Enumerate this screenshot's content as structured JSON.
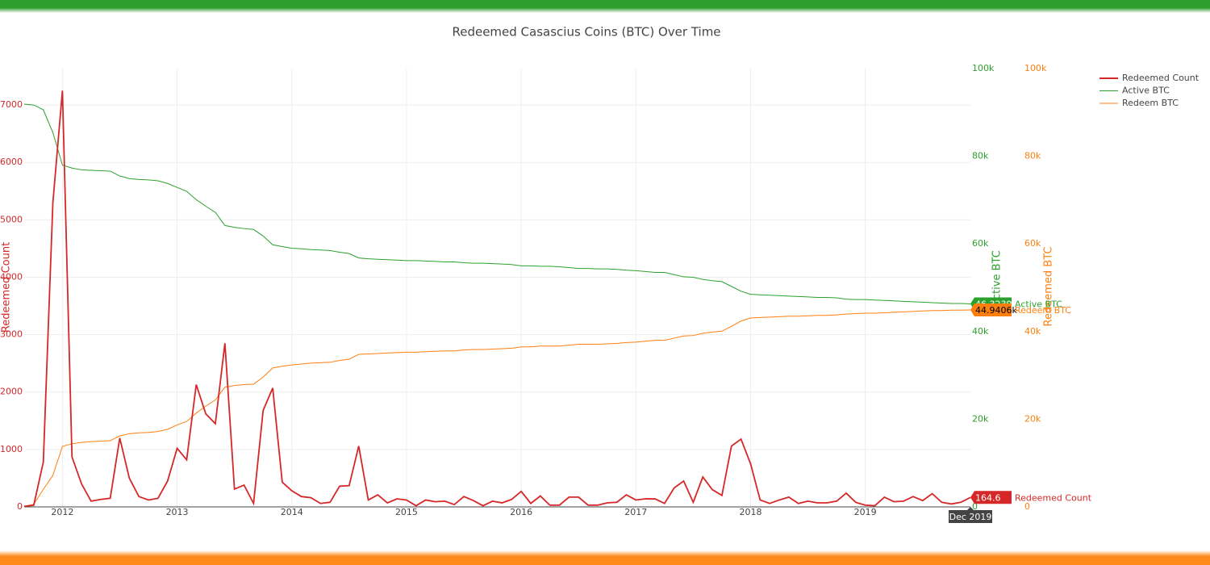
{
  "chart_data": {
    "type": "line",
    "title": "Redeemed Casascius Coins (BTC) Over Time",
    "y_label": "Redeemed Count",
    "y2_label": "Active BTC",
    "y3_label": "Redeemed BTC",
    "x": [
      "2011-09",
      "2011-10",
      "2011-11",
      "2011-12",
      "2012-01",
      "2012-02",
      "2012-03",
      "2012-04",
      "2012-05",
      "2012-06",
      "2012-07",
      "2012-08",
      "2012-09",
      "2012-10",
      "2012-11",
      "2012-12",
      "2013-01",
      "2013-02",
      "2013-03",
      "2013-04",
      "2013-05",
      "2013-06",
      "2013-07",
      "2013-08",
      "2013-09",
      "2013-10",
      "2013-11",
      "2013-12",
      "2014-01",
      "2014-02",
      "2014-03",
      "2014-04",
      "2014-05",
      "2014-06",
      "2014-07",
      "2014-08",
      "2014-09",
      "2014-10",
      "2014-11",
      "2014-12",
      "2015-01",
      "2015-02",
      "2015-03",
      "2015-04",
      "2015-05",
      "2015-06",
      "2015-07",
      "2015-08",
      "2015-09",
      "2015-10",
      "2015-11",
      "2015-12",
      "2016-01",
      "2016-02",
      "2016-03",
      "2016-04",
      "2016-05",
      "2016-06",
      "2016-07",
      "2016-08",
      "2016-09",
      "2016-10",
      "2016-11",
      "2016-12",
      "2017-01",
      "2017-02",
      "2017-03",
      "2017-04",
      "2017-05",
      "2017-06",
      "2017-07",
      "2017-08",
      "2017-09",
      "2017-10",
      "2017-11",
      "2017-12",
      "2018-01",
      "2018-02",
      "2018-03",
      "2018-04",
      "2018-05",
      "2018-06",
      "2018-07",
      "2018-08",
      "2018-09",
      "2018-10",
      "2018-11",
      "2018-12",
      "2019-01",
      "2019-02",
      "2019-03",
      "2019-04",
      "2019-05",
      "2019-06",
      "2019-07",
      "2019-08",
      "2019-09",
      "2019-10",
      "2019-11",
      "2019-12"
    ],
    "xlim": [
      "2011-09",
      "2019-12"
    ],
    "xticks": [
      {
        "value": "2012-01",
        "label": "2012"
      },
      {
        "value": "2013-01",
        "label": "2013"
      },
      {
        "value": "2014-01",
        "label": "2014"
      },
      {
        "value": "2015-01",
        "label": "2015"
      },
      {
        "value": "2016-01",
        "label": "2016"
      },
      {
        "value": "2017-01",
        "label": "2017"
      },
      {
        "value": "2018-01",
        "label": "2018"
      },
      {
        "value": "2019-01",
        "label": "2019"
      }
    ],
    "ylim": [
      0,
      7634
    ],
    "yticks": [
      0,
      1000,
      2000,
      3000,
      4000,
      5000,
      6000,
      7000
    ],
    "y2lim": [
      0,
      100000
    ],
    "y2ticks": [
      0,
      {
        "value": 20000,
        "label": "20k"
      },
      {
        "value": 40000,
        "label": "40k"
      },
      {
        "value": 60000,
        "label": "60k"
      },
      {
        "value": 80000,
        "label": "80k"
      },
      {
        "value": 100000,
        "label": "100k"
      }
    ],
    "y3lim": [
      0,
      100000
    ],
    "y3ticks": [
      0,
      {
        "value": 20000,
        "label": "20k"
      },
      {
        "value": 40000,
        "label": "40k"
      },
      {
        "value": 60000,
        "label": "60k"
      },
      {
        "value": 80000,
        "label": "80k"
      },
      {
        "value": 100000,
        "label": "100k"
      }
    ],
    "grid": true,
    "legend": "top-right",
    "series": [
      {
        "name": "Redeemed Count",
        "color": "#d62728",
        "axis": "y",
        "values": [
          10,
          30,
          780,
          5300,
          7250,
          870,
          400,
          100,
          130,
          150,
          1200,
          500,
          180,
          120,
          150,
          450,
          1020,
          820,
          2130,
          1620,
          1450,
          2850,
          310,
          380,
          60,
          1680,
          2070,
          430,
          280,
          180,
          160,
          60,
          80,
          360,
          370,
          1060,
          120,
          210,
          70,
          140,
          120,
          20,
          120,
          90,
          100,
          40,
          180,
          110,
          20,
          100,
          70,
          130,
          270,
          60,
          190,
          30,
          30,
          170,
          170,
          30,
          30,
          70,
          80,
          210,
          120,
          140,
          140,
          60,
          330,
          450,
          80,
          520,
          300,
          200,
          1060,
          1180,
          750,
          120,
          60,
          120,
          170,
          60,
          100,
          70,
          70,
          100,
          240,
          80,
          30,
          20,
          170,
          90,
          100,
          180,
          110,
          230,
          80,
          50,
          80,
          164.6
        ]
      },
      {
        "name": "Active BTC",
        "color": "#2ca02c",
        "axis": "y2",
        "values": [
          91900,
          91700,
          90600,
          85400,
          78000,
          77300,
          76900,
          76800,
          76700,
          76600,
          75500,
          74900,
          74700,
          74600,
          74400,
          73800,
          72900,
          72000,
          70100,
          68600,
          67200,
          64200,
          63800,
          63500,
          63300,
          61800,
          59800,
          59400,
          59000,
          58900,
          58700,
          58600,
          58500,
          58100,
          57800,
          56800,
          56600,
          56500,
          56400,
          56300,
          56200,
          56200,
          56100,
          56000,
          55900,
          55900,
          55700,
          55600,
          55600,
          55500,
          55400,
          55300,
          55000,
          55000,
          54900,
          54900,
          54800,
          54600,
          54400,
          54400,
          54300,
          54300,
          54200,
          54000,
          53900,
          53700,
          53500,
          53500,
          53000,
          52500,
          52400,
          51900,
          51600,
          51400,
          50300,
          49200,
          48500,
          48400,
          48300,
          48200,
          48100,
          48000,
          47900,
          47800,
          47800,
          47700,
          47400,
          47300,
          47300,
          47200,
          47100,
          47000,
          46900,
          46800,
          46700,
          46600,
          46500,
          46400,
          46400,
          46323.9
        ]
      },
      {
        "name": "Redeem BTC",
        "color": "#ff7f0e",
        "axis": "y3",
        "values": [
          100,
          600,
          4000,
          7200,
          13800,
          14400,
          14700,
          14900,
          15000,
          15100,
          16200,
          16700,
          16900,
          17000,
          17200,
          17700,
          18700,
          19500,
          21400,
          23000,
          24400,
          27300,
          27700,
          27900,
          28000,
          29600,
          31700,
          32100,
          32400,
          32600,
          32800,
          32900,
          33000,
          33400,
          33700,
          34800,
          34900,
          35000,
          35100,
          35200,
          35300,
          35300,
          35400,
          35500,
          35600,
          35600,
          35800,
          35900,
          35900,
          36000,
          36100,
          36200,
          36500,
          36500,
          36700,
          36700,
          36700,
          36900,
          37100,
          37100,
          37100,
          37200,
          37300,
          37500,
          37600,
          37800,
          38000,
          38000,
          38500,
          39000,
          39100,
          39600,
          39900,
          40100,
          41200,
          42400,
          43100,
          43200,
          43300,
          43400,
          43500,
          43500,
          43600,
          43700,
          43700,
          43800,
          44000,
          44100,
          44200,
          44200,
          44300,
          44400,
          44500,
          44600,
          44700,
          44800,
          44800,
          44900,
          44900,
          44940.6
        ]
      }
    ],
    "hover": {
      "x_label": "Dec 2019",
      "labels": [
        "164.6",
        "46.3239k",
        "44.9406k"
      ]
    }
  }
}
